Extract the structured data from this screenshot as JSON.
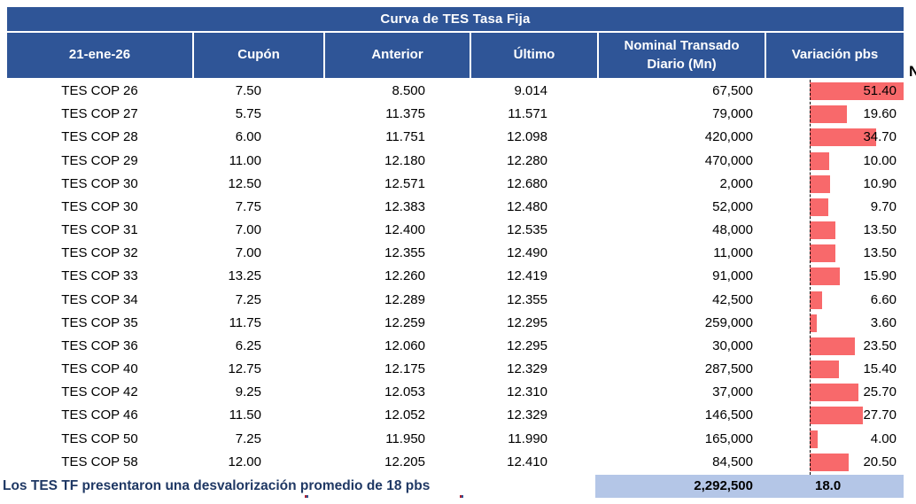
{
  "table": {
    "title": "Curva de TES Tasa Fija",
    "header": {
      "date": "21-ene-26",
      "cupon": "Cupón",
      "anterior": "Anterior",
      "ultimo": "Último",
      "nominal": "Nominal Transado Diario (Mn)",
      "variacion": "Variación pbs"
    },
    "rows": [
      {
        "name": "TES COP 26",
        "cupon": "7.50",
        "anterior": "8.500",
        "ultimo": "9.014",
        "nominal": "67,500",
        "variacion": "51.40",
        "variacion_value": 51.4
      },
      {
        "name": "TES COP 27",
        "cupon": "5.75",
        "anterior": "11.375",
        "ultimo": "11.571",
        "nominal": "79,000",
        "variacion": "19.60",
        "variacion_value": 19.6
      },
      {
        "name": "TES COP 28",
        "cupon": "6.00",
        "anterior": "11.751",
        "ultimo": "12.098",
        "nominal": "420,000",
        "variacion": "34.70",
        "variacion_value": 34.7
      },
      {
        "name": "TES COP 29",
        "cupon": "11.00",
        "anterior": "12.180",
        "ultimo": "12.280",
        "nominal": "470,000",
        "variacion": "10.00",
        "variacion_value": 10.0
      },
      {
        "name": "TES COP 30",
        "cupon": "12.50",
        "anterior": "12.571",
        "ultimo": "12.680",
        "nominal": "2,000",
        "variacion": "10.90",
        "variacion_value": 10.9
      },
      {
        "name": "TES COP 30",
        "cupon": "7.75",
        "anterior": "12.383",
        "ultimo": "12.480",
        "nominal": "52,000",
        "variacion": "9.70",
        "variacion_value": 9.7
      },
      {
        "name": "TES COP 31",
        "cupon": "7.00",
        "anterior": "12.400",
        "ultimo": "12.535",
        "nominal": "48,000",
        "variacion": "13.50",
        "variacion_value": 13.5
      },
      {
        "name": "TES COP 32",
        "cupon": "7.00",
        "anterior": "12.355",
        "ultimo": "12.490",
        "nominal": "11,000",
        "variacion": "13.50",
        "variacion_value": 13.5
      },
      {
        "name": "TES COP 33",
        "cupon": "13.25",
        "anterior": "12.260",
        "ultimo": "12.419",
        "nominal": "91,000",
        "variacion": "15.90",
        "variacion_value": 15.9
      },
      {
        "name": "TES COP 34",
        "cupon": "7.25",
        "anterior": "12.289",
        "ultimo": "12.355",
        "nominal": "42,500",
        "variacion": "6.60",
        "variacion_value": 6.6
      },
      {
        "name": "TES COP 35",
        "cupon": "11.75",
        "anterior": "12.259",
        "ultimo": "12.295",
        "nominal": "259,000",
        "variacion": "3.60",
        "variacion_value": 3.6
      },
      {
        "name": "TES COP 36",
        "cupon": "6.25",
        "anterior": "12.060",
        "ultimo": "12.295",
        "nominal": "30,000",
        "variacion": "23.50",
        "variacion_value": 23.5
      },
      {
        "name": "TES COP 40",
        "cupon": "12.75",
        "anterior": "12.175",
        "ultimo": "12.329",
        "nominal": "287,500",
        "variacion": "15.40",
        "variacion_value": 15.4
      },
      {
        "name": "TES COP 42",
        "cupon": "9.25",
        "anterior": "12.053",
        "ultimo": "12.310",
        "nominal": "37,000",
        "variacion": "25.70",
        "variacion_value": 25.7
      },
      {
        "name": "TES COP 46",
        "cupon": "11.50",
        "anterior": "12.052",
        "ultimo": "12.329",
        "nominal": "146,500",
        "variacion": "27.70",
        "variacion_value": 27.7
      },
      {
        "name": "TES COP 50",
        "cupon": "7.25",
        "anterior": "11.950",
        "ultimo": "11.990",
        "nominal": "165,000",
        "variacion": "4.00",
        "variacion_value": 4.0
      },
      {
        "name": "TES COP 58",
        "cupon": "12.00",
        "anterior": "12.205",
        "ultimo": "12.410",
        "nominal": "84,500",
        "variacion": "20.50",
        "variacion_value": 20.5
      }
    ],
    "footer": {
      "note": "Los TES TF presentaron una desvalorización promedio de 18 pbs",
      "nominal_total": "2,292,500",
      "variacion_promedio": "18.0"
    }
  },
  "clipped_content": {
    "right_edge_text": "N"
  },
  "colors": {
    "header_blue": "#2F5597",
    "bar_red": "#F8696B",
    "totals_bg": "#B4C6E7",
    "note_blue": "#1F3864",
    "text_black": "#000000"
  },
  "chart_data": {
    "type": "table",
    "title": "Curva de TES Tasa Fija",
    "columns": [
      "21-ene-26",
      "Cupón",
      "Anterior",
      "Último",
      "Nominal Transado Diario (Mn)",
      "Variación pbs"
    ],
    "rows": [
      [
        "TES COP 26",
        7.5,
        8.5,
        9.014,
        67500,
        51.4
      ],
      [
        "TES COP 27",
        5.75,
        11.375,
        11.571,
        79000,
        19.6
      ],
      [
        "TES COP 28",
        6.0,
        11.751,
        12.098,
        420000,
        34.7
      ],
      [
        "TES COP 29",
        11.0,
        12.18,
        12.28,
        470000,
        10.0
      ],
      [
        "TES COP 30",
        12.5,
        12.571,
        12.68,
        2000,
        10.9
      ],
      [
        "TES COP 30",
        7.75,
        12.383,
        12.48,
        52000,
        9.7
      ],
      [
        "TES COP 31",
        7.0,
        12.4,
        12.535,
        48000,
        13.5
      ],
      [
        "TES COP 32",
        7.0,
        12.355,
        12.49,
        11000,
        13.5
      ],
      [
        "TES COP 33",
        13.25,
        12.26,
        12.419,
        91000,
        15.9
      ],
      [
        "TES COP 34",
        7.25,
        12.289,
        12.355,
        42500,
        6.6
      ],
      [
        "TES COP 35",
        11.75,
        12.259,
        12.295,
        259000,
        3.6
      ],
      [
        "TES COP 36",
        6.25,
        12.06,
        12.295,
        30000,
        23.5
      ],
      [
        "TES COP 40",
        12.75,
        12.175,
        12.329,
        287500,
        15.4
      ],
      [
        "TES COP 42",
        9.25,
        12.053,
        12.31,
        37000,
        25.7
      ],
      [
        "TES COP 46",
        11.5,
        12.052,
        12.329,
        146500,
        27.7
      ],
      [
        "TES COP 50",
        7.25,
        11.95,
        11.99,
        165000,
        4.0
      ],
      [
        "TES COP 58",
        12.0,
        12.205,
        12.41,
        84500,
        20.5
      ]
    ],
    "embedded_bars": {
      "column": "Variación pbs",
      "type": "bar",
      "color": "#F8696B",
      "values": [
        51.4,
        19.6,
        34.7,
        10.0,
        10.9,
        9.7,
        13.5,
        13.5,
        15.9,
        6.6,
        3.6,
        23.5,
        15.4,
        25.7,
        27.7,
        4.0,
        20.5
      ],
      "xlim": [
        0,
        51.4
      ],
      "baseline": "dashed-left"
    },
    "totals": {
      "nominal_transado_diario": 2292500,
      "variacion_promedio_pbs": 18.0
    }
  }
}
